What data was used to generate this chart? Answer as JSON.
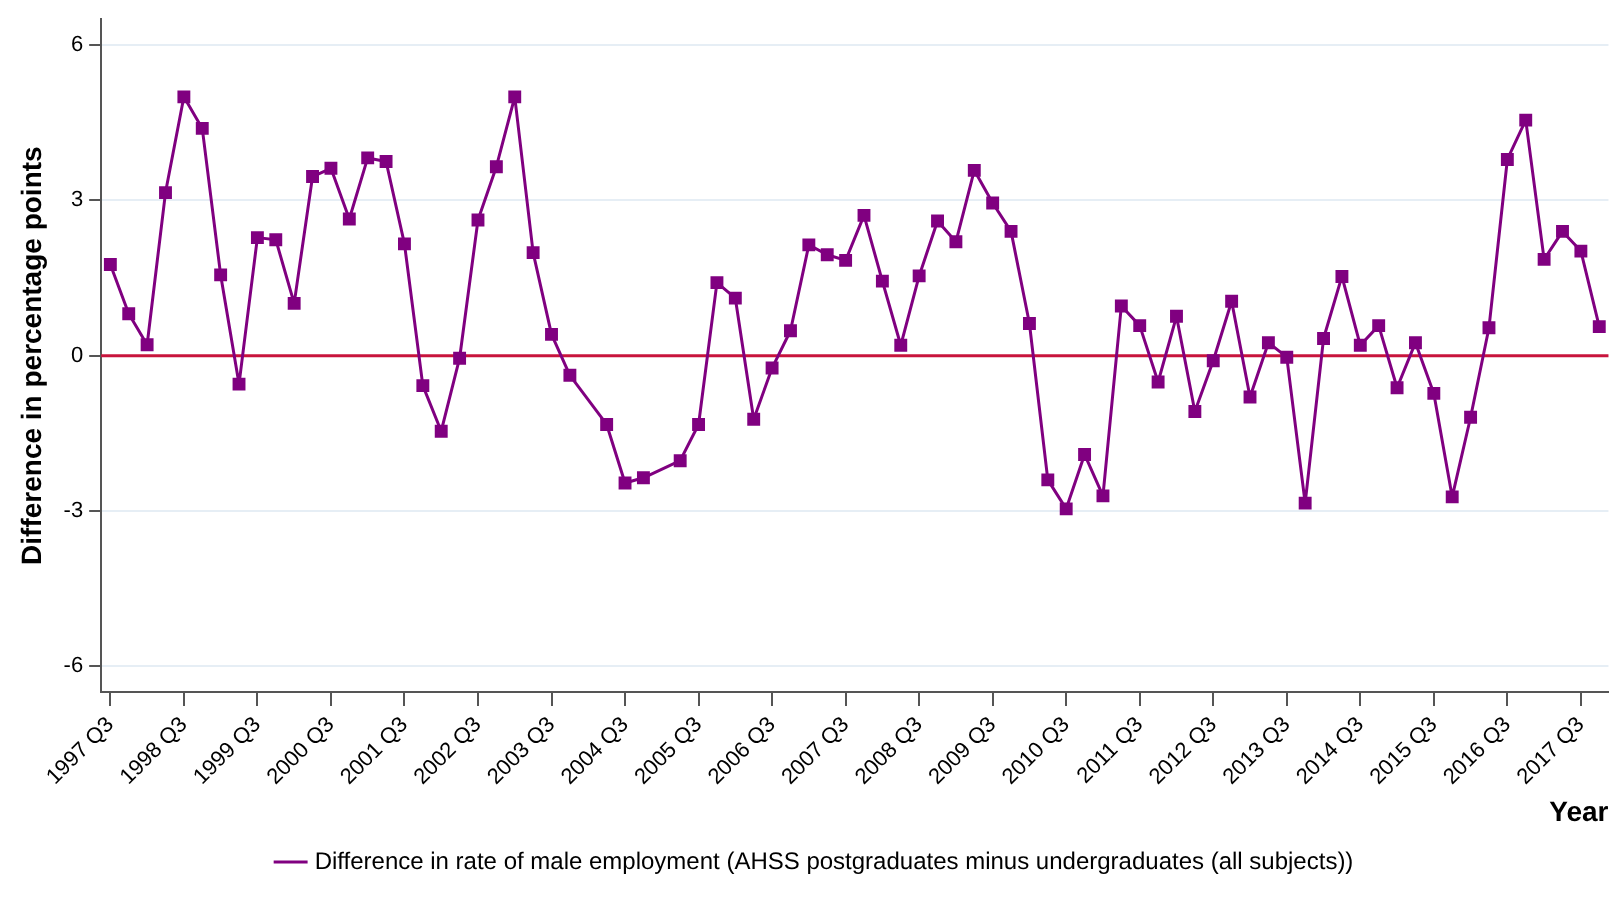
{
  "chart_data": {
    "type": "line",
    "xlabel": "Year",
    "ylabel": "Difference in percentage points",
    "categories": [
      "1997 Q3",
      null,
      null,
      null,
      "1998 Q3",
      null,
      null,
      null,
      "1999 Q3",
      null,
      null,
      null,
      "2000 Q3",
      null,
      null,
      null,
      "2001 Q3",
      null,
      null,
      null,
      "2002 Q3",
      null,
      null,
      null,
      "2003 Q3",
      null,
      null,
      null,
      "2004 Q3",
      null,
      null,
      null,
      "2005 Q3",
      null,
      null,
      null,
      "2006 Q3",
      null,
      null,
      null,
      "2007 Q3",
      null,
      null,
      null,
      "2008 Q3",
      null,
      null,
      null,
      "2009 Q3",
      null,
      null,
      null,
      "2010 Q3",
      null,
      null,
      null,
      "2011 Q3",
      null,
      null,
      null,
      "2012 Q3",
      null,
      null,
      null,
      "2013 Q3",
      null,
      null,
      null,
      "2014 Q3",
      null,
      null,
      null,
      "2015 Q3",
      null,
      null,
      null,
      "2016 Q3",
      null,
      null,
      null,
      "2017 Q3",
      null
    ],
    "series": [
      {
        "name": "Difference in rate of male employment (AHSS postgraduates minus undergraduates (all subjects))",
        "color": "#800080",
        "values": [
          1.76,
          0.81,
          0.21,
          3.15,
          5.0,
          4.39,
          1.56,
          -0.55,
          2.28,
          2.24,
          1.01,
          3.46,
          3.62,
          2.64,
          3.82,
          3.75,
          2.16,
          -0.58,
          -1.46,
          -0.05,
          2.62,
          3.65,
          5.0,
          1.99,
          0.41,
          -0.38,
          null,
          -1.33,
          -2.46,
          -2.36,
          null,
          -2.03,
          -1.33,
          1.41,
          1.11,
          -1.23,
          -0.24,
          0.48,
          2.14,
          1.95,
          1.84,
          2.71,
          1.44,
          0.2,
          1.54,
          2.6,
          2.2,
          3.58,
          2.95,
          2.4,
          0.62,
          -2.4,
          -2.96,
          -1.91,
          -2.71,
          0.96,
          0.58,
          -0.51,
          0.76,
          -1.08,
          -0.1,
          1.05,
          -0.8,
          0.25,
          -0.03,
          -2.85,
          0.33,
          1.53,
          0.2,
          0.58,
          -0.62,
          0.25,
          -0.73,
          -2.73,
          -1.19,
          0.54,
          3.79,
          4.55,
          1.86,
          2.4,
          2.02,
          0.56
        ]
      }
    ],
    "ylim": [
      -6.5,
      6.5
    ],
    "yticks": [
      -6,
      -3,
      0,
      3,
      6
    ],
    "grid": "y",
    "marker": "square",
    "line_style": "solid",
    "legend": "bottom",
    "ref_lines": [
      {
        "axis": "y",
        "value": 0,
        "color": "#c8143c"
      }
    ]
  }
}
